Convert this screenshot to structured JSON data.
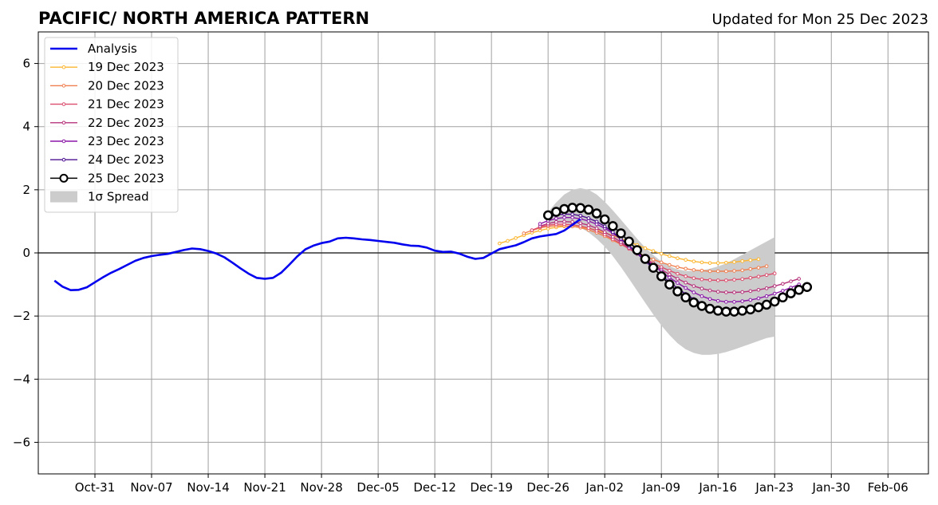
{
  "chart_data": {
    "type": "line",
    "title": "PACIFIC/ NORTH AMERICA PATTERN",
    "subtitle": "Updated for Mon 25 Dec 2023",
    "xlabel": "",
    "ylabel": "",
    "x_axis": "date",
    "xlim": [
      "2023-10-24",
      "2024-02-11"
    ],
    "ylim": [
      -7,
      7
    ],
    "yticks": [
      -6,
      -4,
      -2,
      0,
      2,
      4,
      6
    ],
    "ytick_labels": [
      "−6",
      "−4",
      "−2",
      "0",
      "2",
      "4",
      "6"
    ],
    "xticks": [
      "2023-10-31",
      "2023-11-07",
      "2023-11-14",
      "2023-11-21",
      "2023-11-28",
      "2023-12-05",
      "2023-12-12",
      "2023-12-19",
      "2023-12-26",
      "2024-01-02",
      "2024-01-09",
      "2024-01-16",
      "2024-01-23",
      "2024-01-30",
      "2024-02-06"
    ],
    "xtick_labels": [
      "Oct-31",
      "Nov-07",
      "Nov-14",
      "Nov-21",
      "Nov-28",
      "Dec-05",
      "Dec-12",
      "Dec-19",
      "Dec-26",
      "Jan-02",
      "Jan-09",
      "Jan-16",
      "Jan-23",
      "Jan-30",
      "Feb-06"
    ],
    "grid": true,
    "zero_line": true,
    "legend_position": "top-left",
    "analysis": {
      "name": "Analysis",
      "color": "#0000ee",
      "start": "2023-10-26",
      "values": [
        -0.88,
        -1.07,
        -1.18,
        -1.17,
        -1.09,
        -0.93,
        -0.77,
        -0.63,
        -0.51,
        -0.38,
        -0.25,
        -0.16,
        -0.1,
        -0.06,
        -0.03,
        0.03,
        0.09,
        0.14,
        0.12,
        0.06,
        -0.02,
        -0.14,
        -0.31,
        -0.49,
        -0.66,
        -0.79,
        -0.82,
        -0.79,
        -0.63,
        -0.38,
        -0.11,
        0.11,
        0.23,
        0.31,
        0.36,
        0.46,
        0.48,
        0.46,
        0.43,
        0.41,
        0.38,
        0.35,
        0.32,
        0.27,
        0.23,
        0.22,
        0.17,
        0.07,
        0.03,
        0.04,
        -0.02,
        -0.12,
        -0.19,
        -0.16,
        -0.02,
        0.12,
        0.18,
        0.24,
        0.34,
        0.46,
        0.52,
        0.56,
        0.6,
        0.71,
        0.89,
        1.07
      ]
    },
    "spread": {
      "name": "1σ Spread",
      "color": "#cccccc",
      "start": "2023-12-26",
      "upper": [
        1.3,
        1.6,
        1.85,
        2.0,
        2.05,
        2.0,
        1.85,
        1.62,
        1.35,
        1.05,
        0.75,
        0.45,
        0.17,
        -0.07,
        -0.27,
        -0.42,
        -0.52,
        -0.57,
        -0.57,
        -0.55,
        -0.5,
        -0.43,
        -0.33,
        -0.2,
        -0.06,
        0.08,
        0.22,
        0.36,
        0.5
      ],
      "lower": [
        0.9,
        0.95,
        0.95,
        0.9,
        0.8,
        0.65,
        0.45,
        0.2,
        -0.1,
        -0.45,
        -0.82,
        -1.2,
        -1.58,
        -1.95,
        -2.3,
        -2.6,
        -2.86,
        -3.05,
        -3.17,
        -3.23,
        -3.23,
        -3.2,
        -3.14,
        -3.06,
        -2.97,
        -2.88,
        -2.79,
        -2.7,
        -2.65
      ]
    },
    "series": [
      {
        "name": "19 Dec 2023",
        "color": "#fcb630",
        "start": "2023-12-20",
        "values": [
          0.3,
          0.38,
          0.47,
          0.56,
          0.64,
          0.71,
          0.77,
          0.81,
          0.84,
          0.84,
          0.82,
          0.78,
          0.72,
          0.64,
          0.55,
          0.45,
          0.35,
          0.25,
          0.15,
          0.06,
          -0.03,
          -0.1,
          -0.17,
          -0.22,
          -0.27,
          -0.3,
          -0.32,
          -0.32,
          -0.31,
          -0.29,
          -0.26,
          -0.23,
          -0.2
        ]
      },
      {
        "name": "20 Dec 2023",
        "color": "#f07f4f",
        "start": "2023-12-23",
        "values": [
          0.62,
          0.71,
          0.79,
          0.84,
          0.86,
          0.86,
          0.84,
          0.8,
          0.73,
          0.64,
          0.53,
          0.4,
          0.27,
          0.14,
          0.02,
          -0.1,
          -0.21,
          -0.3,
          -0.38,
          -0.45,
          -0.5,
          -0.54,
          -0.56,
          -0.58,
          -0.58,
          -0.58,
          -0.57,
          -0.55,
          -0.51,
          -0.47,
          -0.42
        ]
      },
      {
        "name": "21 Dec 2023",
        "color": "#db4d6d",
        "start": "2023-12-24",
        "values": [
          0.72,
          0.82,
          0.88,
          0.91,
          0.91,
          0.89,
          0.85,
          0.79,
          0.7,
          0.58,
          0.44,
          0.29,
          0.13,
          -0.03,
          -0.18,
          -0.32,
          -0.45,
          -0.56,
          -0.66,
          -0.74,
          -0.8,
          -0.84,
          -0.86,
          -0.87,
          -0.87,
          -0.85,
          -0.83,
          -0.79,
          -0.75,
          -0.7,
          -0.65
        ]
      },
      {
        "name": "22 Dec 2023",
        "color": "#b6327b",
        "start": "2023-12-25",
        "values": [
          0.85,
          0.93,
          0.98,
          0.99,
          0.98,
          0.94,
          0.88,
          0.78,
          0.66,
          0.51,
          0.34,
          0.16,
          -0.02,
          -0.2,
          -0.37,
          -0.53,
          -0.68,
          -0.82,
          -0.94,
          -1.05,
          -1.13,
          -1.19,
          -1.23,
          -1.25,
          -1.25,
          -1.24,
          -1.21,
          -1.17,
          -1.12,
          -1.05,
          -0.98,
          -0.9,
          -0.82
        ]
      },
      {
        "name": "23 Dec 2023",
        "color": "#8a17a8",
        "start": "2023-12-25",
        "values": [
          0.92,
          1.02,
          1.09,
          1.12,
          1.12,
          1.08,
          1.01,
          0.91,
          0.78,
          0.62,
          0.43,
          0.23,
          0.02,
          -0.19,
          -0.39,
          -0.59,
          -0.78,
          -0.95,
          -1.11,
          -1.25,
          -1.37,
          -1.46,
          -1.52,
          -1.55,
          -1.55,
          -1.53,
          -1.49,
          -1.44,
          -1.37,
          -1.29,
          -1.2,
          -1.1,
          -1.0
        ]
      },
      {
        "name": "24 Dec 2023",
        "color": "#4c0f8f",
        "start": "2023-12-26",
        "values": [
          1.12,
          1.2,
          1.23,
          1.22,
          1.18,
          1.1,
          0.99,
          0.84,
          0.66,
          0.45,
          0.22,
          -0.02,
          -0.26,
          -0.49,
          -0.71,
          -0.92,
          -1.12,
          -1.3,
          -1.46,
          -1.6,
          -1.71,
          -1.79,
          -1.83,
          -1.85,
          -1.84,
          -1.8,
          -1.74,
          -1.66,
          -1.56,
          -1.45,
          -1.33,
          -1.2,
          -1.08
        ]
      },
      {
        "name": "25 Dec 2023",
        "color": "#000000",
        "marker": "open-circle",
        "start": "2023-12-26",
        "values": [
          1.19,
          1.3,
          1.39,
          1.43,
          1.42,
          1.37,
          1.25,
          1.06,
          0.85,
          0.62,
          0.36,
          0.09,
          -0.19,
          -0.47,
          -0.74,
          -1.0,
          -1.22,
          -1.41,
          -1.57,
          -1.68,
          -1.77,
          -1.83,
          -1.86,
          -1.86,
          -1.83,
          -1.79,
          -1.72,
          -1.64,
          -1.54,
          -1.41,
          -1.28,
          -1.17,
          -1.08
        ]
      }
    ]
  }
}
